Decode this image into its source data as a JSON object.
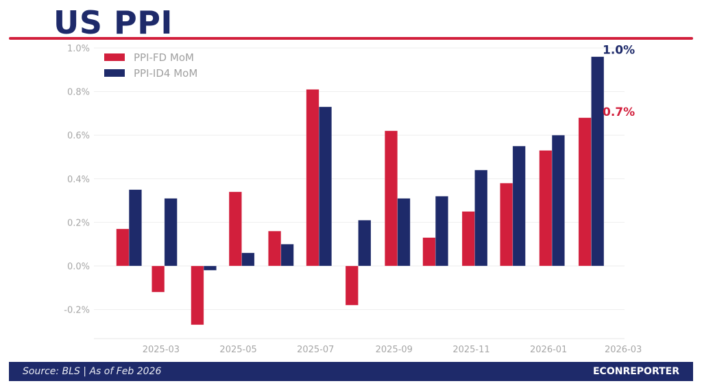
{
  "header": {
    "title": "US PPI"
  },
  "footer": {
    "source": "Source: BLS  |  As of Feb 2026",
    "brand": "ECONREPORTER"
  },
  "colors": {
    "red": "#d21f3c",
    "navy": "#1e2a6a",
    "grid": "#eeeeee",
    "tick": "#a6a6a6"
  },
  "chart_data": {
    "type": "bar",
    "title": "US PPI",
    "xlabel": "",
    "ylabel": "",
    "categories": [
      "2025-02",
      "2025-03",
      "2025-04",
      "2025-05",
      "2025-06",
      "2025-07",
      "2025-08",
      "2025-09",
      "2025-10",
      "2025-11",
      "2025-12",
      "2026-01",
      "2026-02"
    ],
    "series": [
      {
        "name": "PPI-FD MoM",
        "color": "#d21f3c",
        "values": [
          0.17,
          -0.12,
          -0.27,
          0.34,
          0.16,
          0.81,
          -0.18,
          0.62,
          0.13,
          0.25,
          0.38,
          0.53,
          0.68
        ]
      },
      {
        "name": "PPI-ID4 MoM",
        "color": "#1e2a6a",
        "values": [
          0.35,
          0.31,
          -0.02,
          0.06,
          0.1,
          0.73,
          0.21,
          0.31,
          0.32,
          0.44,
          0.55,
          0.6,
          0.96
        ]
      }
    ],
    "ylim": [
      -0.33,
      1.0
    ],
    "yticks": [
      -0.2,
      0.0,
      0.2,
      0.4,
      0.6,
      0.8,
      1.0
    ],
    "ytick_labels": [
      "-0.2%",
      "0.0%",
      "0.2%",
      "0.4%",
      "0.6%",
      "0.8%",
      "1.0%"
    ],
    "xticks": [
      "2025-03",
      "2025-05",
      "2025-07",
      "2025-09",
      "2025-11",
      "2026-01",
      "2026-03"
    ],
    "xlim": [
      "2025-01-07",
      "2026-03-02"
    ],
    "grid": true,
    "legend": "top-left",
    "end_labels": [
      {
        "series": "PPI-ID4 MoM",
        "text": "1.0%",
        "color": "#1e2a6a"
      },
      {
        "series": "PPI-FD MoM",
        "text": "0.7%",
        "color": "#d21f3c"
      }
    ]
  }
}
